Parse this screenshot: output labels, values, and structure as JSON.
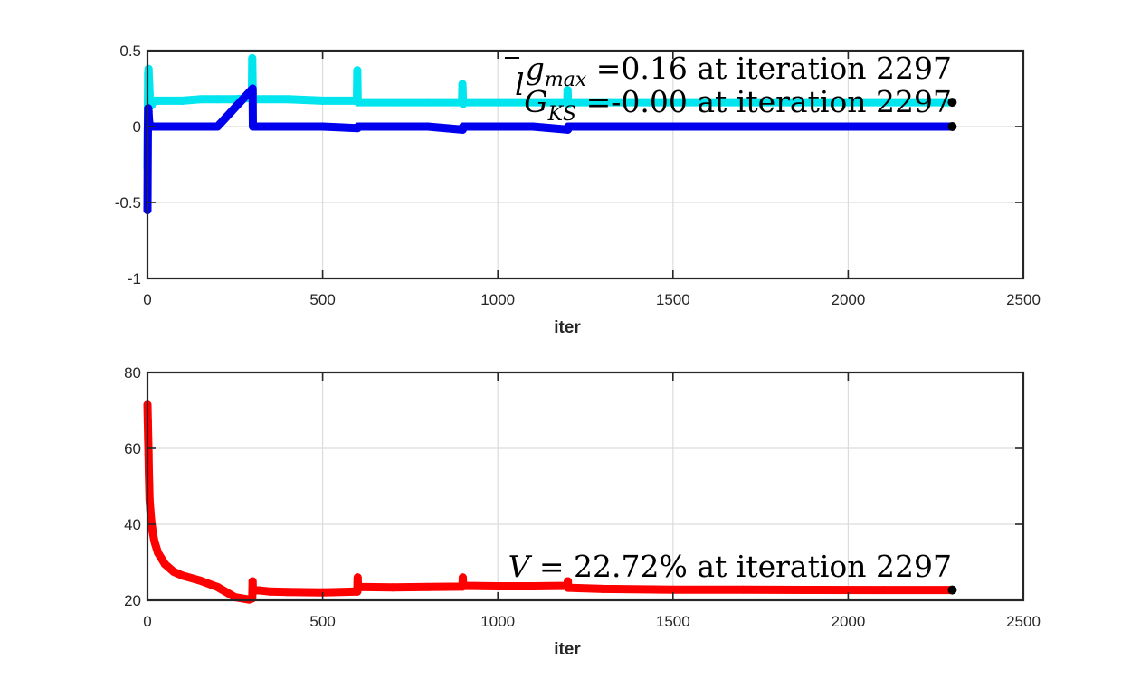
{
  "chart_data": [
    {
      "type": "scatter",
      "xlabel": "iter",
      "ylabel": "",
      "xlim": [
        0,
        2500
      ],
      "ylim": [
        -1,
        0.5
      ],
      "xticks": [
        0,
        500,
        1000,
        1500,
        2000,
        2500
      ],
      "xtick_labels": [
        "0",
        "500",
        "1000",
        "1500",
        "2000",
        "2500"
      ],
      "yticks": [
        -1,
        -0.5,
        0,
        0.5
      ],
      "ytick_labels": [
        "-1",
        "-0.5",
        "0",
        "0.5"
      ],
      "grid": true,
      "series": [
        {
          "color": "#00e5ee",
          "x": [
            0,
            1,
            2,
            3,
            4,
            5,
            6,
            7,
            8,
            10,
            12,
            15,
            20,
            30,
            50,
            100,
            150,
            200,
            250,
            298,
            299,
            300,
            301,
            302,
            350,
            400,
            500,
            598,
            599,
            600,
            601,
            602,
            700,
            800,
            898,
            899,
            900,
            901,
            902,
            1000,
            1100,
            1198,
            1199,
            1200,
            1201,
            1202,
            1300,
            1500,
            1700,
            1900,
            2100,
            2297
          ],
          "y": [
            -0.27,
            0.02,
            0.35,
            0.38,
            0.32,
            0.28,
            0.22,
            0.18,
            0.16,
            0.15,
            0.14,
            0.16,
            0.17,
            0.17,
            0.17,
            0.17,
            0.18,
            0.18,
            0.18,
            0.19,
            0.45,
            0.26,
            0.2,
            0.18,
            0.18,
            0.18,
            0.17,
            0.17,
            0.37,
            0.18,
            0.16,
            0.16,
            0.16,
            0.16,
            0.16,
            0.28,
            0.2,
            0.15,
            0.16,
            0.16,
            0.16,
            0.16,
            0.24,
            0.18,
            0.15,
            0.16,
            0.16,
            0.16,
            0.16,
            0.16,
            0.16,
            0.16
          ]
        },
        {
          "color": "#0000ee",
          "x": [
            0,
            1,
            2,
            3,
            4,
            5,
            6,
            8,
            10,
            15,
            20,
            50,
            100,
            200,
            300,
            301,
            400,
            500,
            600,
            601,
            700,
            800,
            900,
            901,
            1000,
            1100,
            1200,
            1201,
            1300,
            1500,
            1700,
            1900,
            2100,
            2297
          ],
          "y": [
            -0.55,
            -0.04,
            0.12,
            0.1,
            0.06,
            0.03,
            0.02,
            0.01,
            0.0,
            0.0,
            0.0,
            0.0,
            0.0,
            0.0,
            0.25,
            0.0,
            0.0,
            0.0,
            -0.01,
            0.0,
            0.0,
            0.0,
            -0.02,
            0.0,
            0.0,
            0.0,
            -0.02,
            0.0,
            0.0,
            0.0,
            0.0,
            0.0,
            0.0,
            0.0
          ]
        }
      ],
      "endpoints": [
        {
          "x": 2297,
          "y": 0.16,
          "color": "#000000"
        },
        {
          "x": 2297,
          "y": 0.0,
          "color": "#000000"
        }
      ],
      "annotations": [
        "ḡmax =0.16 at iteration 2297",
        "GlKS =-0.00 at iteration 2297"
      ]
    },
    {
      "type": "scatter",
      "xlabel": "iter",
      "ylabel": "",
      "xlim": [
        0,
        2500
      ],
      "ylim": [
        20,
        80
      ],
      "xticks": [
        0,
        500,
        1000,
        1500,
        2000,
        2500
      ],
      "xtick_labels": [
        "0",
        "500",
        "1000",
        "1500",
        "2000",
        "2500"
      ],
      "yticks": [
        20,
        40,
        60,
        80
      ],
      "ytick_labels": [
        "20",
        "40",
        "60",
        "80"
      ],
      "grid": true,
      "series": [
        {
          "color": "#ff0000",
          "x": [
            0,
            1,
            2,
            3,
            4,
            5,
            6,
            8,
            10,
            15,
            20,
            30,
            50,
            75,
            100,
            150,
            200,
            250,
            290,
            299,
            300,
            301,
            350,
            400,
            500,
            599,
            600,
            601,
            700,
            800,
            899,
            900,
            901,
            1000,
            1100,
            1199,
            1200,
            1201,
            1300,
            1500,
            1700,
            1900,
            2100,
            2297
          ],
          "y": [
            71.5,
            67,
            62.5,
            58.5,
            54,
            50.5,
            46.5,
            44,
            41.5,
            38,
            35.5,
            32.5,
            29.5,
            27.5,
            26.5,
            25.2,
            23.5,
            20.8,
            20.2,
            20.5,
            25,
            22.8,
            22.3,
            22.2,
            22.1,
            22.3,
            26,
            23.5,
            23.4,
            23.5,
            23.6,
            26,
            23.8,
            23.7,
            23.7,
            23.8,
            25,
            23.3,
            23.0,
            22.8,
            22.8,
            22.75,
            22.72,
            22.72
          ]
        }
      ],
      "endpoints": [
        {
          "x": 2297,
          "y": 22.72,
          "color": "#000000"
        }
      ],
      "annotations": [
        "V = 22.72% at iteration 2297"
      ]
    }
  ],
  "labels": {
    "top_x": "iter",
    "bottom_x": "iter",
    "ann_gmax_value": " =0.16 at iteration 2297",
    "ann_gks_value": " =-0.00 at iteration 2297",
    "ann_v_value": " = 22.72% at iteration 2297"
  }
}
